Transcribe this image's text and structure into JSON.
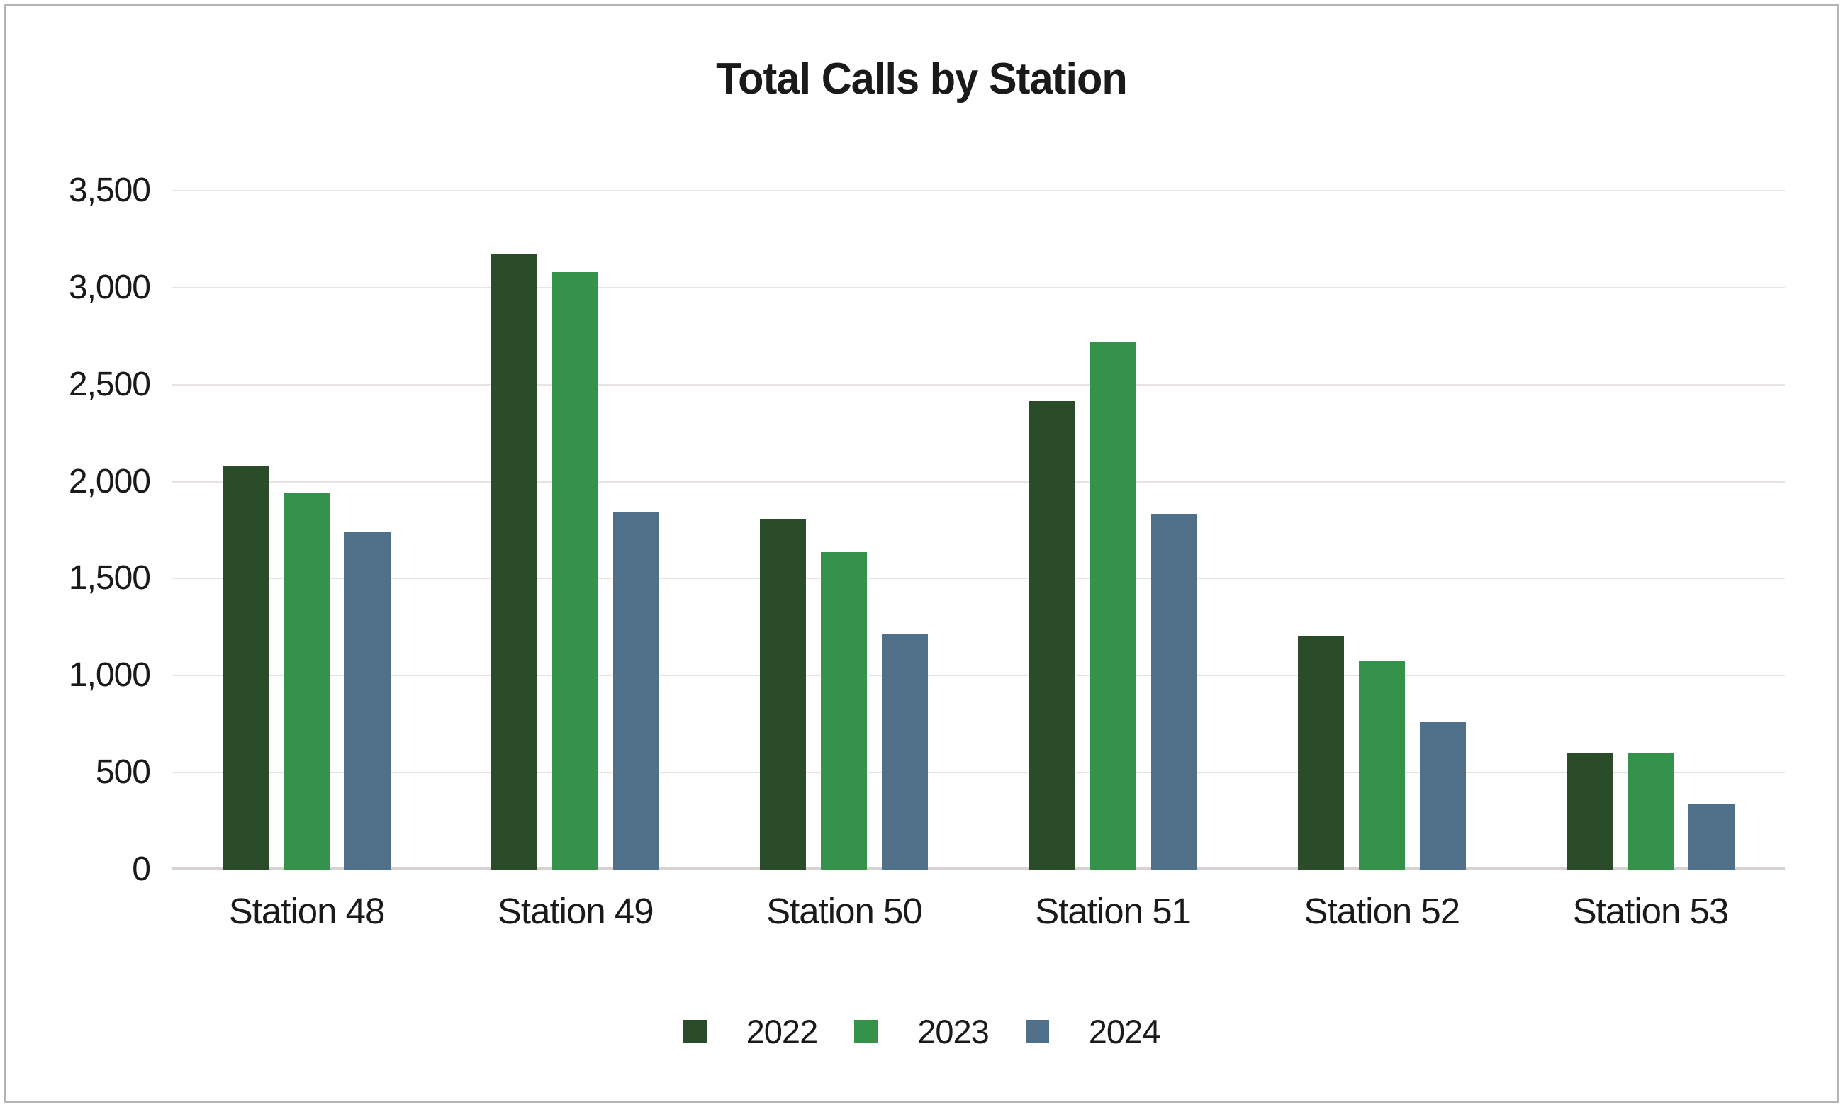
{
  "chart_data": {
    "type": "bar",
    "title": "Total Calls by Station",
    "categories": [
      "Station 48",
      "Station 49",
      "Station 50",
      "Station 51",
      "Station 52",
      "Station 53"
    ],
    "series": [
      {
        "name": "2022",
        "color": "#2b4c29",
        "values": [
          2080,
          3175,
          1805,
          2415,
          1205,
          600
        ]
      },
      {
        "name": "2023",
        "color": "#35924a",
        "values": [
          1940,
          3080,
          1635,
          2720,
          1075,
          600
        ]
      },
      {
        "name": "2024",
        "color": "#507089",
        "values": [
          1740,
          1840,
          1215,
          1835,
          760,
          335
        ]
      }
    ],
    "ylim": [
      0,
      3500
    ],
    "ytick_step": 500,
    "ytick_labels_top_to_bottom": [
      "3,500",
      "3,000",
      "2,500",
      "2,000",
      "1,500",
      "1,000",
      "500",
      "0"
    ],
    "xlabel": "",
    "ylabel": "",
    "grid": "horizontal",
    "legend_position": "bottom"
  },
  "colors": {
    "background": "#ffffff",
    "frame_border": "#b6b3b0",
    "gridline": "#e9e3e2",
    "axis_baseline": "#d7d2d1",
    "text": "#1a1a1a"
  }
}
